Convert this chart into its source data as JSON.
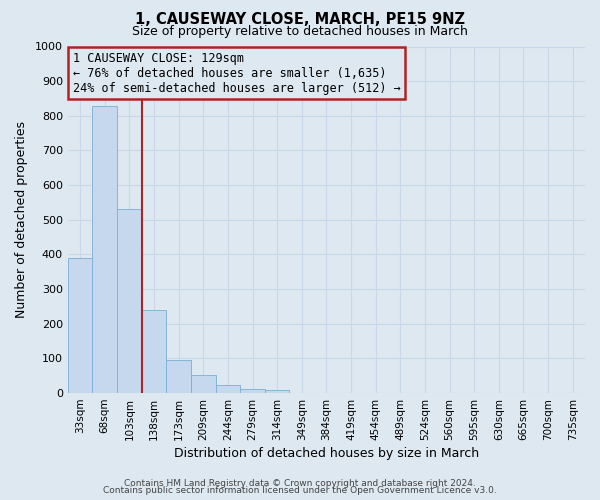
{
  "title": "1, CAUSEWAY CLOSE, MARCH, PE15 9NZ",
  "subtitle": "Size of property relative to detached houses in March",
  "xlabel": "Distribution of detached houses by size in March",
  "ylabel": "Number of detached properties",
  "bar_labels": [
    "33sqm",
    "68sqm",
    "103sqm",
    "138sqm",
    "173sqm",
    "209sqm",
    "244sqm",
    "279sqm",
    "314sqm",
    "349sqm",
    "384sqm",
    "419sqm",
    "454sqm",
    "489sqm",
    "524sqm",
    "560sqm",
    "595sqm",
    "630sqm",
    "665sqm",
    "700sqm",
    "735sqm"
  ],
  "bar_values": [
    390,
    828,
    530,
    240,
    95,
    52,
    22,
    13,
    8,
    0,
    0,
    0,
    0,
    0,
    0,
    0,
    0,
    0,
    0,
    0,
    0
  ],
  "bar_color": "#c5d8ee",
  "bar_edge_color": "#7bafd4",
  "ylim": [
    0,
    1000
  ],
  "yticks": [
    0,
    100,
    200,
    300,
    400,
    500,
    600,
    700,
    800,
    900,
    1000
  ],
  "vline_color": "#b22222",
  "annotation_title": "1 CAUSEWAY CLOSE: 129sqm",
  "annotation_line1": "← 76% of detached houses are smaller (1,635)",
  "annotation_line2": "24% of semi-detached houses are larger (512) →",
  "annotation_box_color": "#b22222",
  "background_color": "#dde8f0",
  "grid_color": "#c8d8e8",
  "footer1": "Contains HM Land Registry data © Crown copyright and database right 2024.",
  "footer2": "Contains public sector information licensed under the Open Government Licence v3.0."
}
